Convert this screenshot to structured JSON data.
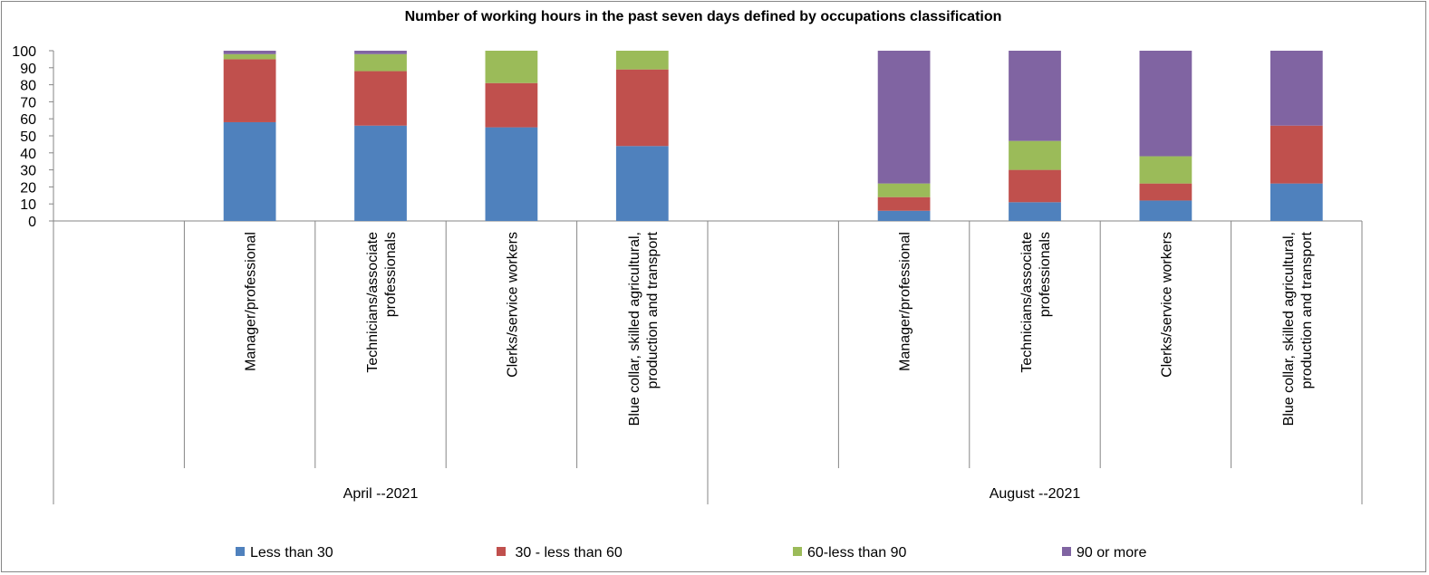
{
  "chart_data": {
    "type": "bar",
    "stacked": true,
    "title": "Number of working hours in the past seven days  defined by occupations classification",
    "ylim": [
      0,
      100
    ],
    "yticks": [
      0,
      10,
      20,
      30,
      40,
      50,
      60,
      70,
      80,
      90,
      100
    ],
    "grid": false,
    "legend_position": "bottom",
    "groups": [
      {
        "label": "April --2021",
        "categories": [
          [
            "Manager/professional"
          ],
          [
            "Technicians/associate",
            "professionals"
          ],
          [
            "Clerks/service workers"
          ],
          [
            "Blue collar, skilled agricultural,",
            "production and transport"
          ]
        ]
      },
      {
        "label": "August --2021",
        "categories": [
          [
            "Manager/professional"
          ],
          [
            "Technicians/associate",
            "professionals"
          ],
          [
            "Clerks/service workers"
          ],
          [
            "Blue collar, skilled agricultural,",
            "production and transport"
          ]
        ]
      }
    ],
    "series": [
      {
        "name": "Less than 30",
        "color": "#4f81bd",
        "values": [
          58,
          56,
          55,
          44,
          6,
          11,
          12,
          22
        ]
      },
      {
        "name": " 30 - less than 60",
        "color": "#c0504d",
        "values": [
          37,
          32,
          26,
          45,
          8,
          19,
          10,
          34
        ]
      },
      {
        "name": "60-less than 90",
        "color": "#9bbb59",
        "values": [
          3,
          10,
          19,
          11,
          8,
          17,
          16,
          0
        ]
      },
      {
        "name": "90 or more",
        "color": "#8064a2",
        "values": [
          2,
          2,
          0,
          0,
          78,
          53,
          62,
          44
        ]
      }
    ]
  }
}
